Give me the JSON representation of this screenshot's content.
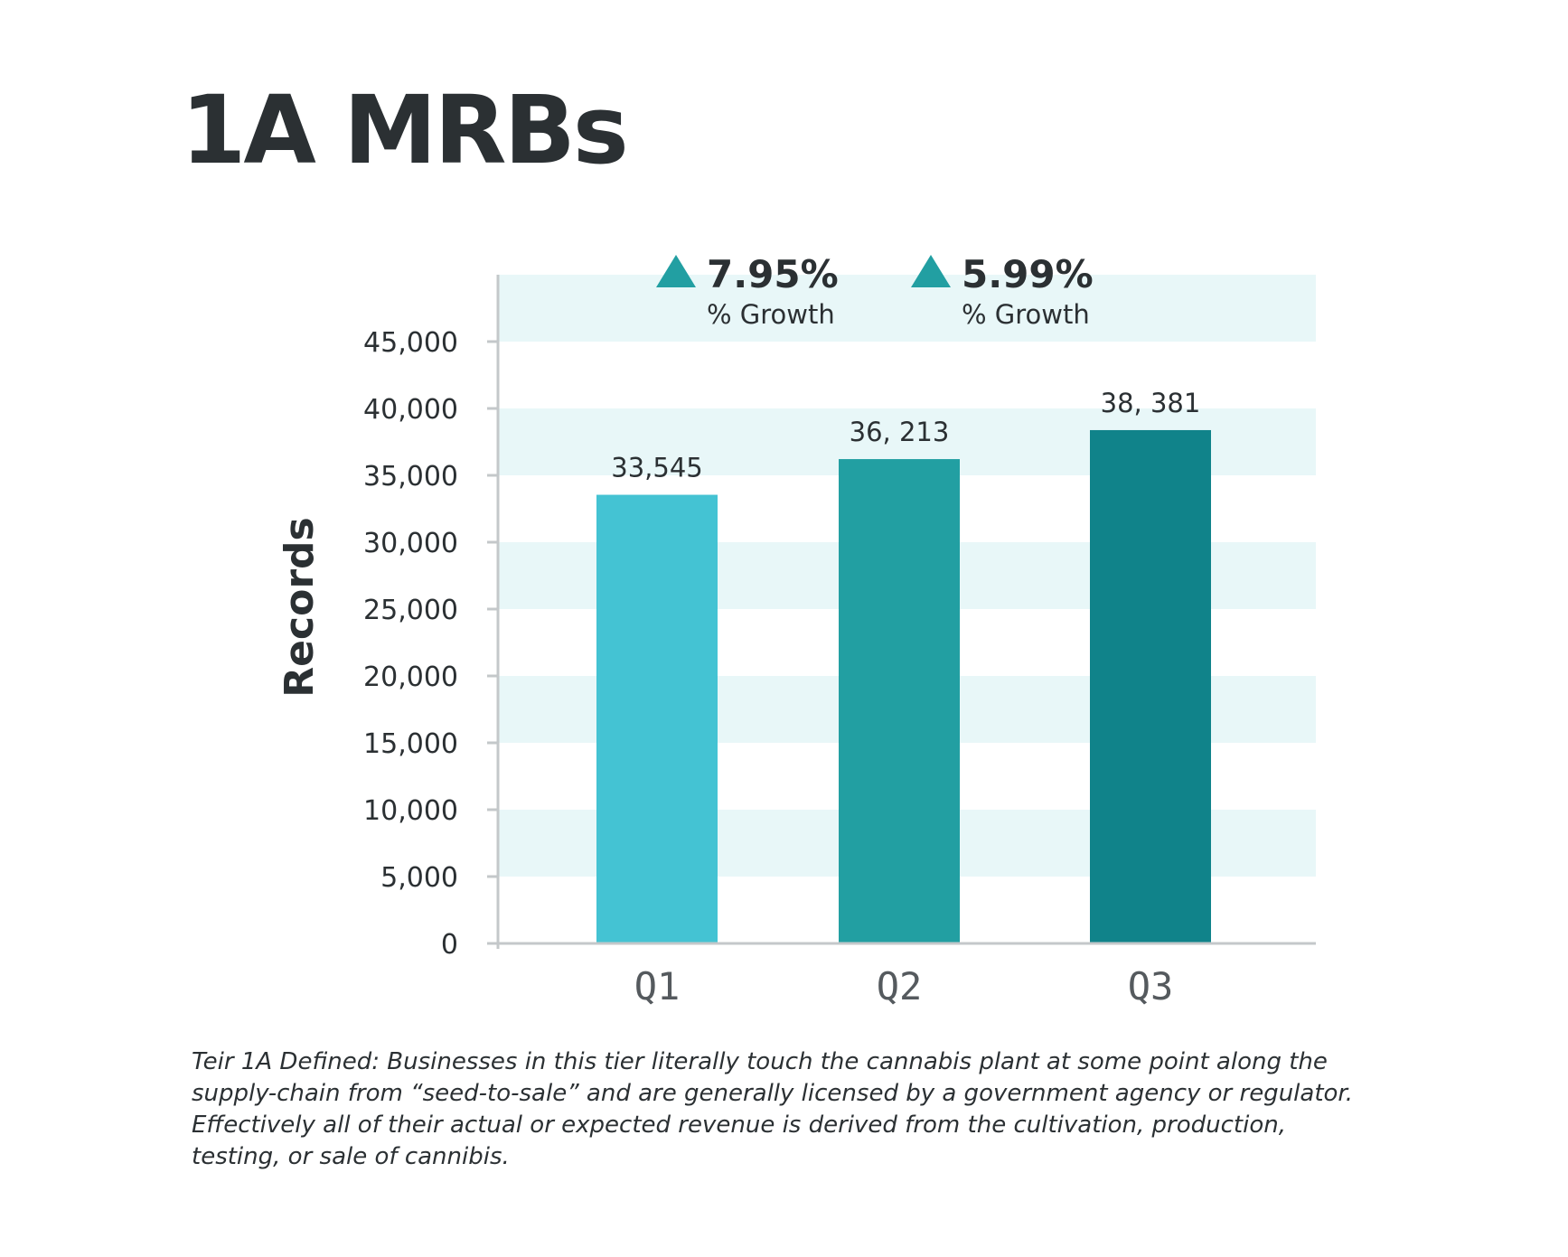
{
  "title": "1A MRBs",
  "chart_data": {
    "type": "bar",
    "title": "1A MRBs",
    "xlabel": "",
    "ylabel": "Records",
    "categories": [
      "Q1",
      "Q2",
      "Q3"
    ],
    "values": [
      33545,
      36213,
      38381
    ],
    "data_labels": [
      "33,545",
      "36, 213",
      "38, 381"
    ],
    "yticks": [
      "0",
      "5,000",
      "10,000",
      "15,000",
      "20,000",
      "25,000",
      "30,000",
      "35,000",
      "40,000",
      "45,000"
    ],
    "ylim": [
      0,
      50000
    ],
    "ytick_step": 5000,
    "grid": "alternating horizontal bands",
    "bar_colors": [
      "#44c3d3",
      "#229fa2",
      "#10838a"
    ],
    "band_color": "#e8f7f8",
    "annotations": [
      {
        "between": [
          "Q1",
          "Q2"
        ],
        "value": "7.95%",
        "label": "% Growth",
        "icon": "up-triangle-icon",
        "color": "#229fa2"
      },
      {
        "between": [
          "Q2",
          "Q3"
        ],
        "value": "5.99%",
        "label": "% Growth",
        "icon": "up-triangle-icon",
        "color": "#229fa2"
      }
    ]
  },
  "footnote": "Teir 1A Defined: Businesses in this tier literally touch the cannabis plant at some point along the supply-chain from “seed-to-sale” and are generally licensed by a government agency or regulator. Effectively all of their actual or expected revenue is derived from the cultivation, production, testing, or sale of cannibis."
}
